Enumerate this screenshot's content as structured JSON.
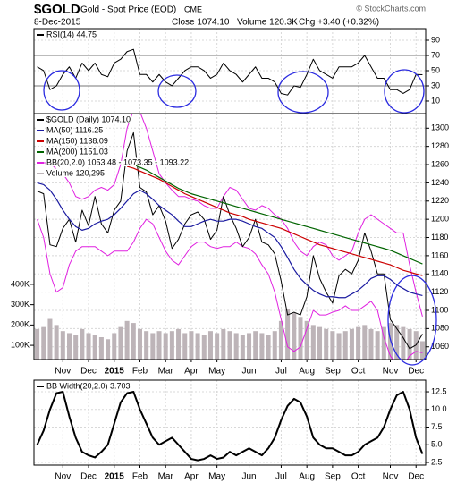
{
  "header": {
    "symbol": "$GOLD",
    "name": "Gold - Spot Price (EOD)",
    "exchange": "CME",
    "copyright": "© StockCharts.com",
    "date": "8-Dec-2015",
    "close": "Close 1074.10",
    "volume": "Volume 120.3K",
    "change": "Chg +3.40 (+0.32%)"
  },
  "chart_data": [
    {
      "type": "line",
      "ylim": [
        -6.5,
        105.3
      ],
      "yticks": [
        10,
        30,
        50,
        70,
        90
      ],
      "levels": [
        70,
        30
      ],
      "grid": true,
      "series": [
        {
          "name": "RSI(14) 44.75",
          "color": "#000000",
          "values": [
            55,
            50,
            25,
            30,
            45,
            55,
            40,
            60,
            50,
            60,
            45,
            42,
            60,
            65,
            75,
            78,
            45,
            45,
            35,
            45,
            35,
            30,
            40,
            50,
            55,
            55,
            50,
            40,
            45,
            60,
            50,
            45,
            35,
            45,
            55,
            40,
            40,
            35,
            20,
            18,
            30,
            28,
            45,
            65,
            50,
            45,
            40,
            55,
            55,
            55,
            60,
            70,
            55,
            40,
            40,
            25,
            25,
            20,
            25,
            45,
            44.75
          ]
        }
      ]
    },
    {
      "type": "line",
      "ylim": [
        1046,
        1316
      ],
      "yticks": [
        1060,
        1080,
        1100,
        1120,
        1140,
        1160,
        1180,
        1200,
        1220,
        1240,
        1260,
        1280,
        1300
      ],
      "grid": true,
      "y2lim": [
        30000,
        1240000
      ],
      "y2ticks": [
        {
          "value": 100000,
          "label": "100K"
        },
        {
          "value": 200000,
          "label": "200K"
        },
        {
          "value": 300000,
          "label": "300K"
        },
        {
          "value": 400000,
          "label": "400K"
        }
      ],
      "categories": [
        null,
        null,
        null,
        null,
        "Nov",
        null,
        null,
        null,
        "Dec",
        null,
        null,
        null,
        "2015",
        null,
        null,
        null,
        "Feb",
        null,
        null,
        null,
        "Mar",
        null,
        null,
        null,
        "Apr",
        null,
        null,
        null,
        "May",
        null,
        null,
        null,
        null,
        "Jun",
        null,
        null,
        null,
        null,
        "Jul",
        null,
        null,
        null,
        "Aug",
        null,
        null,
        null,
        "Sep",
        null,
        null,
        null,
        "Oct",
        null,
        null,
        null,
        null,
        "Nov",
        null,
        null,
        null,
        "Dec",
        null
      ],
      "series": [
        {
          "name": "$GOLD (Daily) 1074.10",
          "color": "#000000",
          "values": [
            1231,
            1228,
            1172,
            1170,
            1190,
            1200,
            1175,
            1210,
            1193,
            1225,
            1195,
            1185,
            1210,
            1220,
            1275,
            1295,
            1235,
            1230,
            1205,
            1215,
            1198,
            1168,
            1178,
            1195,
            1205,
            1208,
            1200,
            1178,
            1188,
            1225,
            1205,
            1190,
            1170,
            1180,
            1200,
            1175,
            1172,
            1162,
            1132,
            1095,
            1098,
            1095,
            1115,
            1160,
            1135,
            1120,
            1108,
            1138,
            1145,
            1140,
            1155,
            1185,
            1165,
            1140,
            1140,
            1090,
            1080,
            1070,
            1058,
            1062,
            1074.1
          ]
        },
        {
          "name": "MA(50) 1116.25",
          "color": "#1a1aa0",
          "values": [
            1240,
            1238,
            1232,
            1222,
            1210,
            1200,
            1192,
            1188,
            1190,
            1195,
            1198,
            1200,
            1205,
            1212,
            1220,
            1228,
            1232,
            1228,
            1222,
            1215,
            1210,
            1205,
            1198,
            1192,
            1192,
            1195,
            1198,
            1200,
            1198,
            1198,
            1200,
            1200,
            1198,
            1195,
            1192,
            1190,
            1185,
            1180,
            1170,
            1158,
            1145,
            1135,
            1128,
            1122,
            1118,
            1115,
            1115,
            1114,
            1114,
            1118,
            1122,
            1128,
            1135,
            1138,
            1138,
            1134,
            1128,
            1124,
            1120,
            1118,
            1116.25
          ]
        },
        {
          "name": "MA(150) 1138.09",
          "color": "#cc0000",
          "values": [
            null,
            null,
            null,
            null,
            null,
            null,
            null,
            null,
            null,
            null,
            null,
            null,
            null,
            null,
            1258,
            1256,
            1253,
            1250,
            1247,
            1244,
            1240,
            1236,
            1232,
            1228,
            1225,
            1222,
            1219,
            1216,
            1213,
            1210,
            1207,
            1205,
            1203,
            1200,
            1198,
            1196,
            1194,
            1192,
            1190,
            1187,
            1184,
            1181,
            1178,
            1175,
            1172,
            1170,
            1168,
            1166,
            1164,
            1162,
            1160,
            1158,
            1156,
            1154,
            1152,
            1150,
            1147,
            1144,
            1142,
            1140,
            1138.09
          ]
        },
        {
          "name": "MA(200) 1151.03",
          "color": "#006400",
          "values": [
            null,
            null,
            null,
            null,
            null,
            null,
            null,
            null,
            null,
            null,
            null,
            null,
            null,
            null,
            1262,
            1260,
            1257,
            1254,
            1250,
            1246,
            1242,
            1238,
            1234,
            1231,
            1228,
            1226,
            1224,
            1222,
            1220,
            1218,
            1216,
            1214,
            1212,
            1210,
            1208,
            1206,
            1204,
            1202,
            1200,
            1198,
            1196,
            1194,
            1192,
            1190,
            1188,
            1186,
            1184,
            1182,
            1180,
            1178,
            1176,
            1174,
            1172,
            1170,
            1168,
            1166,
            1163,
            1160,
            1157,
            1154,
            1151.03
          ]
        },
        {
          "name": "Volume 120,295",
          "color": "#bdb4b8",
          "axis": "y2",
          "type": "bar",
          "values": [
            180000,
            190000,
            230000,
            200000,
            170000,
            160000,
            150000,
            180000,
            160000,
            150000,
            140000,
            130000,
            160000,
            190000,
            220000,
            210000,
            180000,
            170000,
            160000,
            170000,
            160000,
            170000,
            180000,
            160000,
            170000,
            160000,
            150000,
            170000,
            160000,
            180000,
            170000,
            160000,
            150000,
            160000,
            170000,
            160000,
            150000,
            170000,
            220000,
            280000,
            260000,
            240000,
            220000,
            200000,
            190000,
            180000,
            170000,
            160000,
            170000,
            180000,
            190000,
            200000,
            180000,
            170000,
            190000,
            210000,
            200000,
            190000,
            180000,
            170000,
            120295
          ]
        }
      ],
      "bands": {
        "name": "BB(20,2.0) 1053.48 - 1073.35 - 1093.22",
        "color": "#e020e0",
        "upper": [
          1260,
          1262,
          1262,
          1255,
          1250,
          1240,
          1225,
          1222,
          1225,
          1232,
          1235,
          1232,
          1238,
          1260,
          1300,
          1320,
          1318,
          1300,
          1275,
          1250,
          1240,
          1232,
          1225,
          1225,
          1222,
          1220,
          1215,
          1212,
          1212,
          1225,
          1235,
          1232,
          1222,
          1212,
          1210,
          1215,
          1212,
          1205,
          1200,
          1190,
          1175,
          1165,
          1160,
          1170,
          1175,
          1172,
          1160,
          1155,
          1160,
          1165,
          1185,
          1200,
          1205,
          1200,
          1195,
          1190,
          1185,
          1185,
          1150,
          1120,
          1093.22
        ],
        "lower": [
          1200,
          1180,
          1140,
          1120,
          1125,
          1150,
          1165,
          1170,
          1170,
          1170,
          1165,
          1160,
          1165,
          1165,
          1165,
          1175,
          1190,
          1200,
          1195,
          1180,
          1165,
          1155,
          1150,
          1160,
          1170,
          1175,
          1175,
          1170,
          1168,
          1170,
          1170,
          1175,
          1170,
          1168,
          1162,
          1150,
          1140,
          1120,
          1090,
          1060,
          1055,
          1060,
          1080,
          1100,
          1095,
          1095,
          1098,
          1100,
          1105,
          1100,
          1100,
          1105,
          1110,
          1100,
          1070,
          1050,
          1040,
          1040,
          1050,
          1055,
          1053.48
        ]
      }
    },
    {
      "type": "line",
      "ylim": [
        2.12,
        14.15
      ],
      "yticks": [
        2.5,
        {
          "value": 5,
          "label": "5.0"
        },
        7.5,
        {
          "value": 10,
          "label": "10.0"
        },
        12.5
      ],
      "grid": true,
      "categories": [
        null,
        null,
        null,
        null,
        "Nov",
        null,
        null,
        null,
        "Dec",
        null,
        null,
        null,
        "2015",
        null,
        null,
        null,
        "Feb",
        null,
        null,
        null,
        "Mar",
        null,
        null,
        null,
        "Apr",
        null,
        null,
        null,
        "May",
        null,
        null,
        null,
        null,
        "Jun",
        null,
        null,
        null,
        null,
        "Jul",
        null,
        null,
        null,
        "Aug",
        null,
        null,
        null,
        "Sep",
        null,
        null,
        null,
        "Oct",
        null,
        null,
        null,
        null,
        "Nov",
        null,
        null,
        null,
        "Dec",
        null
      ],
      "series": [
        {
          "name": "BB Width(20,2.0) 3.703",
          "color": "#000000",
          "values": [
            5,
            7,
            10,
            12.3,
            12.5,
            9,
            6,
            4,
            3.5,
            3.2,
            4,
            5,
            8,
            11,
            12.3,
            12.5,
            10,
            8,
            6,
            5,
            5.5,
            6,
            5,
            4,
            3,
            2.8,
            3,
            3.5,
            3,
            3.2,
            4,
            3.5,
            4,
            4.5,
            4,
            3.5,
            4.5,
            6,
            8.5,
            10.5,
            11.5,
            11,
            9,
            6,
            5,
            4.5,
            4.5,
            4,
            3.5,
            3.5,
            4,
            5,
            5.5,
            6,
            7.5,
            10,
            12,
            12.5,
            10,
            6,
            3.703
          ]
        }
      ]
    }
  ]
}
